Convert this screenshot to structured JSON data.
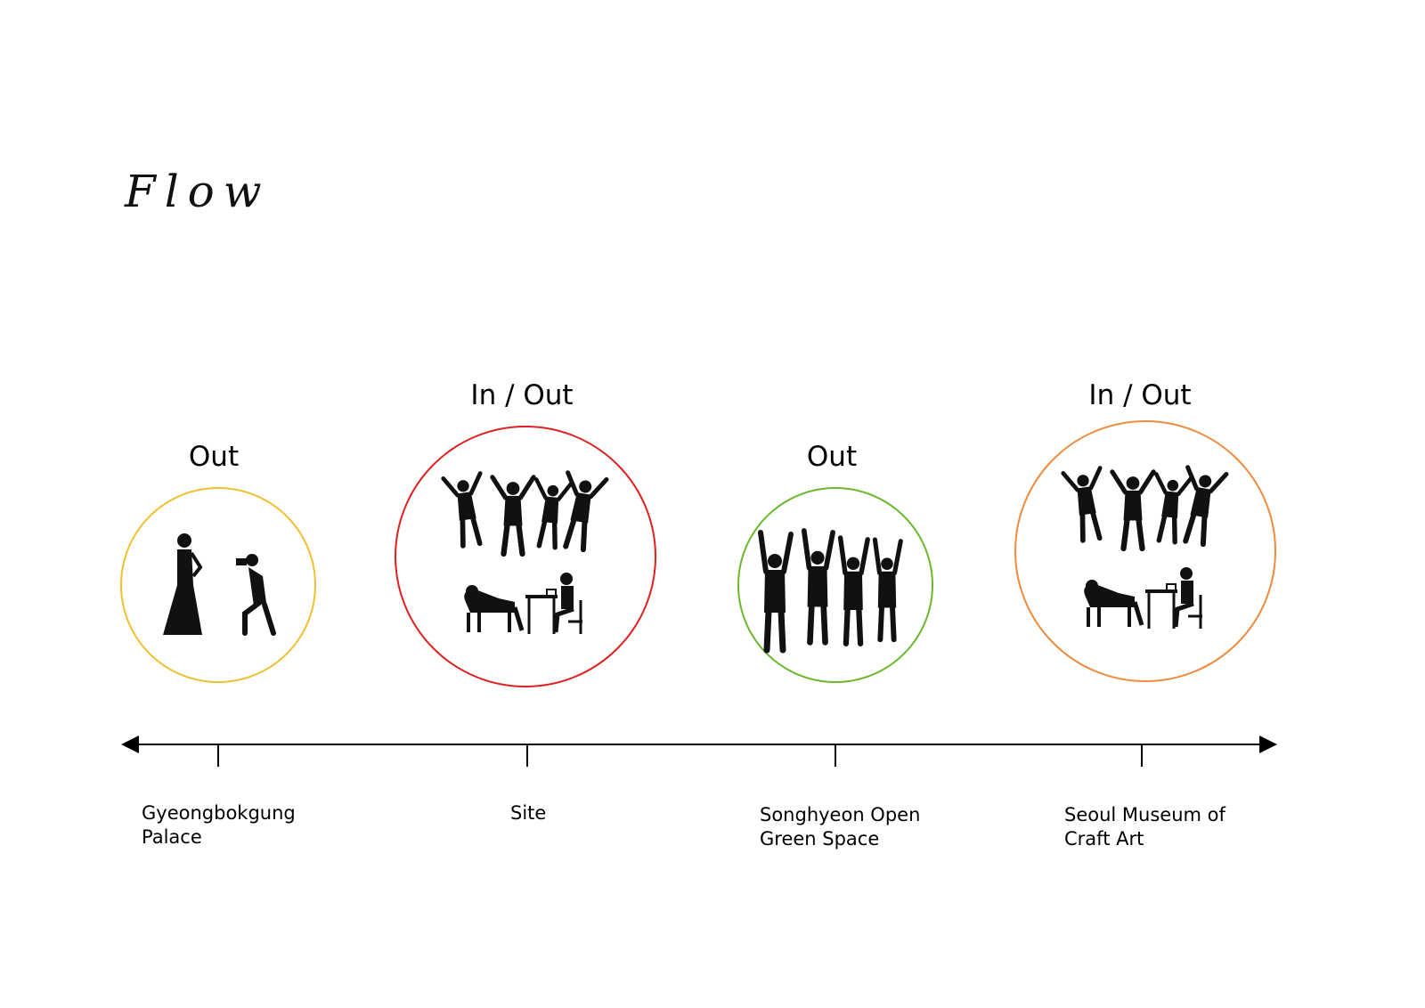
{
  "title": "Flow",
  "colors": {
    "ink": "#111111",
    "axis": "#000000",
    "palace": "#f0c030",
    "site": "#e02020",
    "green_space": "#6ab82c",
    "museum": "#f08a3c"
  },
  "stops": [
    {
      "status": "Out",
      "place_lines": [
        "Gyeongbokgung",
        "Palace"
      ],
      "color_key": "palace",
      "icon": "wedding-photo-silhouette-icon"
    },
    {
      "status": "In / Out",
      "place_lines": [
        "Site"
      ],
      "color_key": "site",
      "icon": "jumping-and-resting-people-icon"
    },
    {
      "status": "Out",
      "place_lines": [
        "Songhyeon Open",
        "Green Space"
      ],
      "color_key": "green_space",
      "icon": "cheering-crowd-icon"
    },
    {
      "status": "In / Out",
      "place_lines": [
        "Seoul Museum of",
        "Craft Art"
      ],
      "color_key": "museum",
      "icon": "jumping-and-resting-people-icon"
    }
  ]
}
